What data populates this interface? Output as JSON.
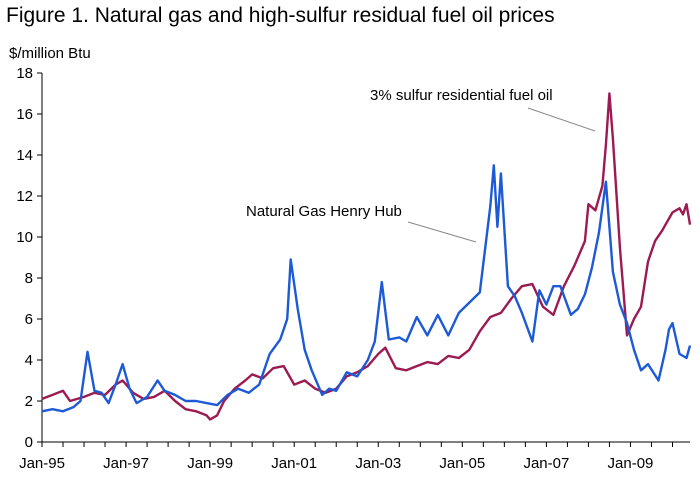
{
  "figure": {
    "title": "Figure 1.  Natural gas and high-sulfur residual fuel oil prices"
  },
  "chart_data": {
    "type": "line",
    "ylabel": "$/million Btu",
    "xlabel": "",
    "ylim": [
      0,
      18
    ],
    "xlim": [
      "1995-01",
      "2010-06"
    ],
    "yticks": [
      "0",
      "2",
      "4",
      "6",
      "8",
      "10",
      "12",
      "14",
      "16",
      "18"
    ],
    "xticks": [
      {
        "label": "Jan-95",
        "date": "1995-01"
      },
      {
        "label": "Jan-97",
        "date": "1997-01"
      },
      {
        "label": "Jan-99",
        "date": "1999-01"
      },
      {
        "label": "Jan-01",
        "date": "2001-01"
      },
      {
        "label": "Jan-03",
        "date": "2003-01"
      },
      {
        "label": "Jan-05",
        "date": "2005-01"
      },
      {
        "label": "Jan-07",
        "date": "2007-01"
      },
      {
        "label": "Jan-09",
        "date": "2009-01"
      }
    ],
    "grid": false,
    "series": [
      {
        "name": "3% sulfur residential fuel oil",
        "color": "#9b1b52",
        "points": [
          [
            "1995-01",
            2.1
          ],
          [
            "1995-04",
            2.3
          ],
          [
            "1995-07",
            2.5
          ],
          [
            "1995-09",
            2.0
          ],
          [
            "1996-01",
            2.2
          ],
          [
            "1996-04",
            2.4
          ],
          [
            "1996-07",
            2.3
          ],
          [
            "1996-10",
            2.8
          ],
          [
            "1996-12",
            3.0
          ],
          [
            "1997-03",
            2.4
          ],
          [
            "1997-06",
            2.1
          ],
          [
            "1997-09",
            2.2
          ],
          [
            "1997-12",
            2.5
          ],
          [
            "1998-03",
            2.0
          ],
          [
            "1998-06",
            1.6
          ],
          [
            "1998-09",
            1.5
          ],
          [
            "1998-12",
            1.3
          ],
          [
            "1999-01",
            1.1
          ],
          [
            "1999-03",
            1.3
          ],
          [
            "1999-05",
            2.0
          ],
          [
            "1999-08",
            2.6
          ],
          [
            "1999-11",
            3.0
          ],
          [
            "2000-01",
            3.3
          ],
          [
            "2000-04",
            3.1
          ],
          [
            "2000-07",
            3.6
          ],
          [
            "2000-10",
            3.7
          ],
          [
            "2001-01",
            2.8
          ],
          [
            "2001-04",
            3.0
          ],
          [
            "2001-07",
            2.6
          ],
          [
            "2001-10",
            2.4
          ],
          [
            "2002-01",
            2.6
          ],
          [
            "2002-04",
            3.2
          ],
          [
            "2002-07",
            3.4
          ],
          [
            "2002-10",
            3.7
          ],
          [
            "2003-01",
            4.3
          ],
          [
            "2003-03",
            4.6
          ],
          [
            "2003-06",
            3.6
          ],
          [
            "2003-09",
            3.5
          ],
          [
            "2003-12",
            3.7
          ],
          [
            "2004-03",
            3.9
          ],
          [
            "2004-06",
            3.8
          ],
          [
            "2004-09",
            4.2
          ],
          [
            "2004-12",
            4.1
          ],
          [
            "2005-03",
            4.5
          ],
          [
            "2005-06",
            5.4
          ],
          [
            "2005-09",
            6.1
          ],
          [
            "2005-12",
            6.3
          ],
          [
            "2006-03",
            7.0
          ],
          [
            "2006-06",
            7.6
          ],
          [
            "2006-09",
            7.7
          ],
          [
            "2006-12",
            6.6
          ],
          [
            "2007-03",
            6.2
          ],
          [
            "2007-06",
            7.6
          ],
          [
            "2007-09",
            8.6
          ],
          [
            "2007-12",
            9.8
          ],
          [
            "2008-01",
            11.6
          ],
          [
            "2008-03",
            11.3
          ],
          [
            "2008-05",
            12.5
          ],
          [
            "2008-06",
            14.5
          ],
          [
            "2008-07",
            17.0
          ],
          [
            "2008-08",
            14.8
          ],
          [
            "2008-10",
            9.5
          ],
          [
            "2008-12",
            5.2
          ],
          [
            "2009-02",
            6.0
          ],
          [
            "2009-04",
            6.6
          ],
          [
            "2009-06",
            8.8
          ],
          [
            "2009-08",
            9.8
          ],
          [
            "2009-10",
            10.3
          ],
          [
            "2010-01",
            11.2
          ],
          [
            "2010-03",
            11.4
          ],
          [
            "2010-04",
            11.1
          ],
          [
            "2010-05",
            11.6
          ],
          [
            "2010-06",
            10.6
          ]
        ]
      },
      {
        "name": "Natural Gas Henry Hub",
        "color": "#1d5ad6",
        "points": [
          [
            "1995-01",
            1.5
          ],
          [
            "1995-04",
            1.6
          ],
          [
            "1995-07",
            1.5
          ],
          [
            "1995-10",
            1.7
          ],
          [
            "1995-12",
            2.0
          ],
          [
            "1996-02",
            4.4
          ],
          [
            "1996-04",
            2.5
          ],
          [
            "1996-06",
            2.4
          ],
          [
            "1996-08",
            1.9
          ],
          [
            "1996-10",
            2.8
          ],
          [
            "1996-12",
            3.8
          ],
          [
            "1997-02",
            2.6
          ],
          [
            "1997-04",
            1.9
          ],
          [
            "1997-07",
            2.2
          ],
          [
            "1997-10",
            3.0
          ],
          [
            "1997-12",
            2.5
          ],
          [
            "1998-03",
            2.3
          ],
          [
            "1998-06",
            2.0
          ],
          [
            "1998-09",
            2.0
          ],
          [
            "1998-12",
            1.9
          ],
          [
            "1999-03",
            1.8
          ],
          [
            "1999-06",
            2.3
          ],
          [
            "1999-09",
            2.6
          ],
          [
            "1999-12",
            2.4
          ],
          [
            "2000-03",
            2.8
          ],
          [
            "2000-06",
            4.3
          ],
          [
            "2000-09",
            5.0
          ],
          [
            "2000-11",
            6.0
          ],
          [
            "2000-12",
            8.9
          ],
          [
            "2001-02",
            6.5
          ],
          [
            "2001-04",
            4.5
          ],
          [
            "2001-06",
            3.5
          ],
          [
            "2001-09",
            2.3
          ],
          [
            "2001-11",
            2.6
          ],
          [
            "2002-01",
            2.5
          ],
          [
            "2002-04",
            3.4
          ],
          [
            "2002-07",
            3.2
          ],
          [
            "2002-10",
            4.0
          ],
          [
            "2002-12",
            4.9
          ],
          [
            "2003-02",
            7.8
          ],
          [
            "2003-04",
            5.0
          ],
          [
            "2003-07",
            5.1
          ],
          [
            "2003-09",
            4.9
          ],
          [
            "2003-12",
            6.1
          ],
          [
            "2004-03",
            5.2
          ],
          [
            "2004-06",
            6.2
          ],
          [
            "2004-09",
            5.2
          ],
          [
            "2004-12",
            6.3
          ],
          [
            "2005-03",
            6.8
          ],
          [
            "2005-06",
            7.3
          ],
          [
            "2005-09",
            11.5
          ],
          [
            "2005-10",
            13.5
          ],
          [
            "2005-11",
            10.5
          ],
          [
            "2005-12",
            13.1
          ],
          [
            "2006-02",
            7.6
          ],
          [
            "2006-04",
            7.1
          ],
          [
            "2006-06",
            6.3
          ],
          [
            "2006-09",
            4.9
          ],
          [
            "2006-11",
            7.4
          ],
          [
            "2007-01",
            6.7
          ],
          [
            "2007-03",
            7.6
          ],
          [
            "2007-05",
            7.6
          ],
          [
            "2007-08",
            6.2
          ],
          [
            "2007-10",
            6.5
          ],
          [
            "2007-12",
            7.2
          ],
          [
            "2008-02",
            8.5
          ],
          [
            "2008-04",
            10.2
          ],
          [
            "2008-06",
            12.7
          ],
          [
            "2008-08",
            8.3
          ],
          [
            "2008-10",
            6.7
          ],
          [
            "2008-12",
            5.8
          ],
          [
            "2009-02",
            4.5
          ],
          [
            "2009-04",
            3.5
          ],
          [
            "2009-06",
            3.8
          ],
          [
            "2009-09",
            3.0
          ],
          [
            "2009-11",
            4.5
          ],
          [
            "2009-12",
            5.5
          ],
          [
            "2010-01",
            5.8
          ],
          [
            "2010-03",
            4.3
          ],
          [
            "2010-05",
            4.1
          ],
          [
            "2010-06",
            4.7
          ]
        ]
      }
    ],
    "annotations": [
      {
        "text": "3% sulfur residential fuel oil",
        "series": 0,
        "at": "2008-06"
      },
      {
        "text": "Natural Gas Henry Hub",
        "series": 1,
        "at": "2005-06"
      }
    ]
  }
}
